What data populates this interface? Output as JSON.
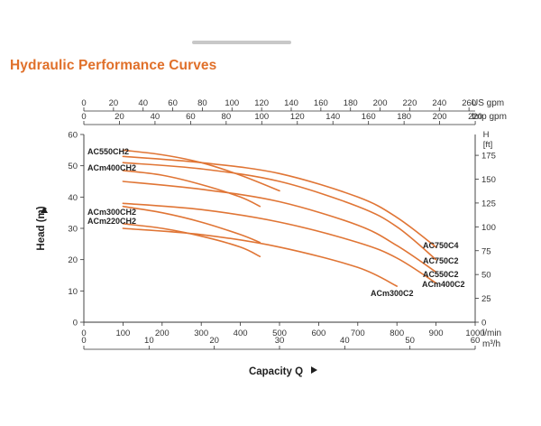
{
  "header": {
    "title": "Hydraulic Performance Curves"
  },
  "colors": {
    "curve": "#e07535",
    "title": "#e0702a",
    "axis": "#333333"
  },
  "chart_data": {
    "type": "line",
    "title": "Hydraulic Performance Curves",
    "xlabel": "Capacity Q",
    "ylabel": "Head (m)",
    "x_unit_primary": "l/min",
    "x_unit_secondary": "m³/h",
    "x_unit_top_us": "US gpm",
    "x_unit_top_imp": "Imp gpm",
    "y_unit_right_top": "H",
    "y_unit_right": "[ft]",
    "xlim": [
      0,
      1000
    ],
    "ylim": [
      0,
      60
    ],
    "x_ticks": [
      "0",
      "100",
      "200",
      "300",
      "400",
      "500",
      "600",
      "700",
      "800",
      "900",
      "1000"
    ],
    "m3h_ticks": [
      "0",
      "10",
      "20",
      "30",
      "40",
      "50",
      "60"
    ],
    "us_gpm_ticks": [
      "0",
      "20",
      "40",
      "60",
      "80",
      "100",
      "120",
      "140",
      "160",
      "180",
      "200",
      "220",
      "240",
      "260"
    ],
    "imp_gpm_ticks": [
      "0",
      "20",
      "40",
      "60",
      "80",
      "100",
      "120",
      "140",
      "160",
      "180",
      "200",
      "220"
    ],
    "y_ticks": [
      "0",
      "10",
      "20",
      "30",
      "40",
      "50",
      "60"
    ],
    "ft_ticks": [
      "0",
      "25",
      "50",
      "75",
      "100",
      "125",
      "150",
      "175"
    ],
    "grid": false,
    "series": [
      {
        "name": "AC550CH2",
        "x": [
          100,
          200,
          300,
          400,
          500
        ],
        "y": [
          55,
          53.5,
          51,
          47,
          42
        ]
      },
      {
        "name": "ACm400CH2",
        "x": [
          100,
          200,
          300,
          400,
          450
        ],
        "y": [
          48.5,
          47,
          44,
          40,
          37
        ]
      },
      {
        "name": "ACm300CH2",
        "x": [
          100,
          200,
          300,
          400,
          450
        ],
        "y": [
          37,
          35,
          32,
          28,
          25.5
        ]
      },
      {
        "name": "ACm220CH2",
        "x": [
          100,
          200,
          300,
          400,
          450
        ],
        "y": [
          31.5,
          30,
          27.5,
          24,
          21
        ]
      },
      {
        "name": "AC750C4",
        "x": [
          100,
          300,
          500,
          700,
          800,
          900
        ],
        "y": [
          53,
          51,
          47.5,
          40,
          33.5,
          24
        ]
      },
      {
        "name": "AC750C2",
        "x": [
          100,
          300,
          500,
          700,
          800,
          900
        ],
        "y": [
          51,
          49,
          45,
          37,
          30.5,
          20
        ]
      },
      {
        "name": "AC550C2",
        "x": [
          100,
          300,
          500,
          700,
          800,
          900
        ],
        "y": [
          45,
          42.5,
          38.5,
          31,
          24.5,
          16
        ]
      },
      {
        "name": "ACm400C2",
        "x": [
          100,
          300,
          500,
          700,
          800,
          900
        ],
        "y": [
          38,
          36,
          32,
          25.5,
          20.5,
          12.5
        ]
      },
      {
        "name": "ACm300C2",
        "x": [
          100,
          300,
          500,
          700,
          800
        ],
        "y": [
          30,
          28,
          24,
          17.5,
          11.5
        ]
      }
    ]
  }
}
